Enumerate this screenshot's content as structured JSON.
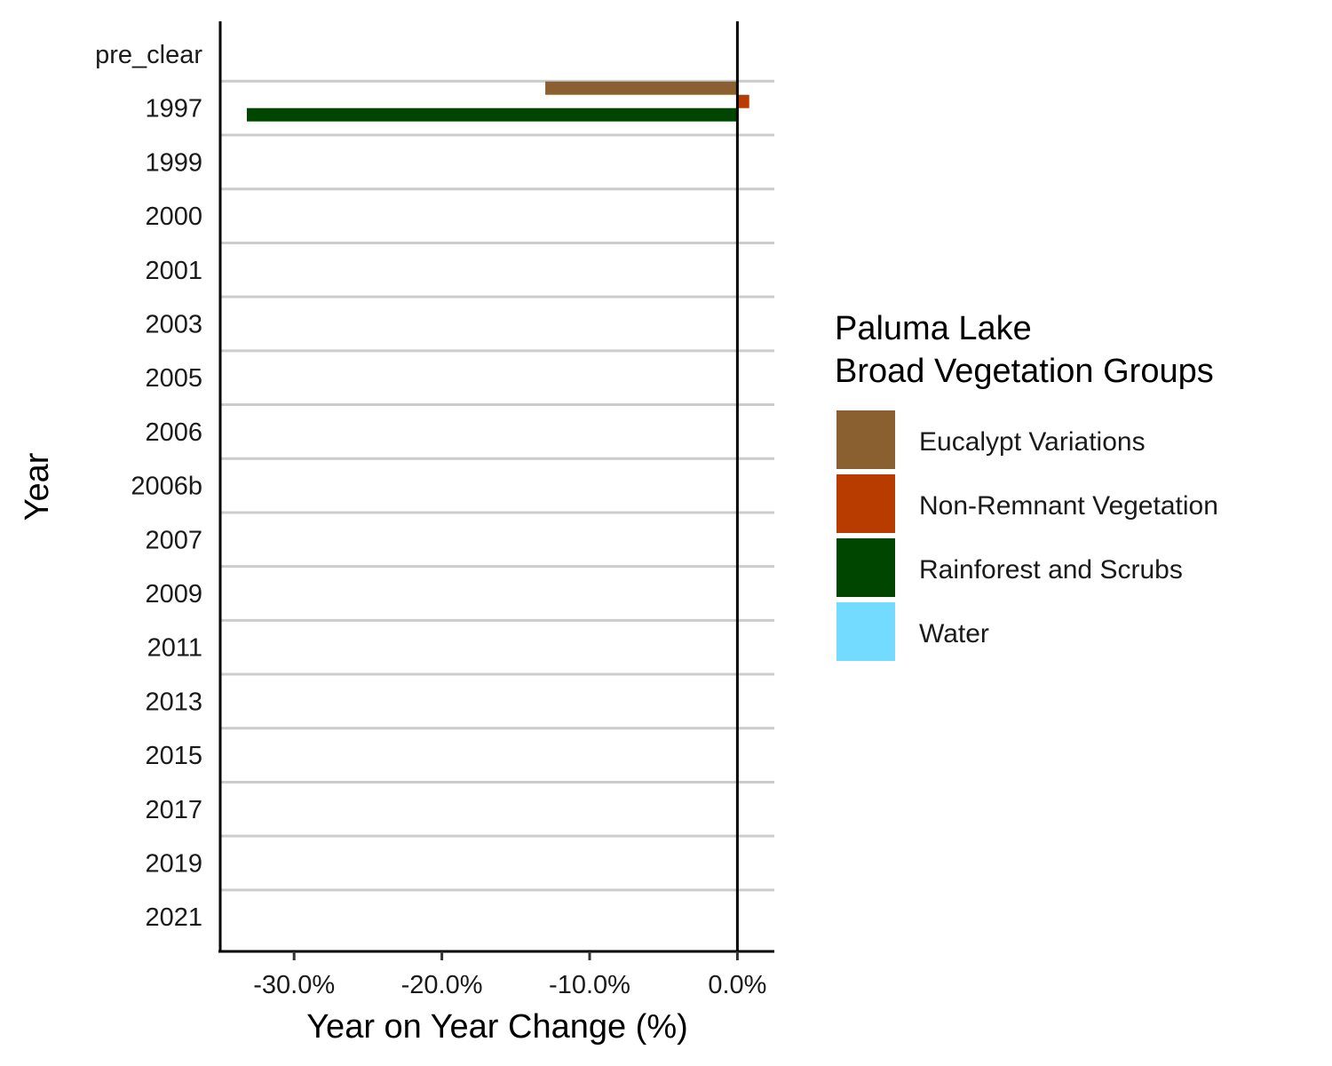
{
  "chart_data": {
    "type": "bar",
    "orientation": "horizontal",
    "xlabel": "Year on Year Change (%)",
    "ylabel": "Year",
    "xlim": [
      -35,
      2.5
    ],
    "x_ticks": [
      -30,
      -20,
      -10,
      0
    ],
    "x_tick_labels": [
      "-30.0%",
      "-20.0%",
      "-10.0%",
      "0.0%"
    ],
    "categories": [
      "pre_clear",
      "1997",
      "1999",
      "2000",
      "2001",
      "2003",
      "2005",
      "2006",
      "2006b",
      "2007",
      "2009",
      "2011",
      "2013",
      "2015",
      "2017",
      "2019",
      "2021"
    ],
    "series": [
      {
        "name": "Eucalypt Variations",
        "color": "#8B6031",
        "values": [
          0,
          -13.0,
          0,
          0,
          0,
          0,
          0,
          0,
          0,
          0,
          0,
          0,
          0,
          0,
          0,
          0,
          0
        ]
      },
      {
        "name": "Non-Remnant Vegetation",
        "color": "#B83C00",
        "values": [
          0,
          0.8,
          0,
          0,
          0,
          0,
          0,
          0,
          0,
          0,
          0,
          0,
          0,
          0,
          0,
          0,
          0
        ]
      },
      {
        "name": "Rainforest and Scrubs",
        "color": "#004600",
        "values": [
          0,
          -33.2,
          0,
          0,
          0,
          0,
          0,
          0,
          0,
          0,
          0,
          0,
          0,
          0,
          0,
          0,
          0
        ]
      },
      {
        "name": "Water",
        "color": "#73DBFF",
        "values": [
          0,
          0,
          0,
          0,
          0,
          0,
          0,
          0,
          0,
          0,
          0,
          0,
          0,
          0,
          0,
          0,
          0
        ]
      }
    ],
    "legend": {
      "title_line1": "Paluma Lake",
      "title_line2": "Broad Vegetation Groups",
      "placement": "right"
    },
    "grid": "horizontal separators between categories",
    "zero_line": true
  }
}
